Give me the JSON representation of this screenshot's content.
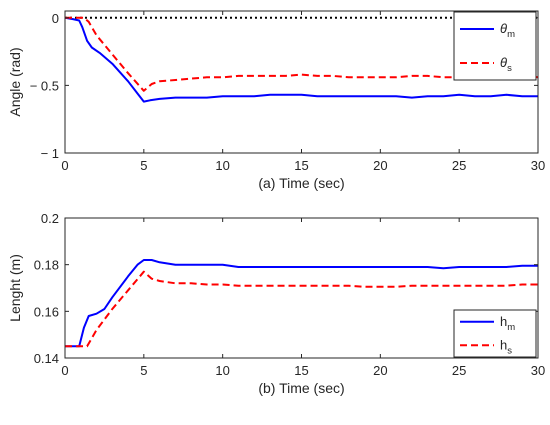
{
  "chart_data": [
    {
      "type": "line",
      "xlabel": "(a) Time (sec)",
      "ylabel": "Angle (rad)",
      "xlim": [
        0,
        30
      ],
      "ylim": [
        -1,
        0.05
      ],
      "xticks": [
        0,
        5,
        10,
        15,
        20,
        25,
        30
      ],
      "xtick_labels": [
        "0",
        "5",
        "10",
        "15",
        "20",
        "25",
        "30"
      ],
      "yticks": [
        0,
        -0.5,
        -1
      ],
      "ytick_labels": [
        "0",
        "− 0.5",
        "− 1"
      ],
      "reference_line": {
        "y": 0,
        "style": "dotted",
        "color": "#000000"
      },
      "grid": false,
      "legend_position": "top-right",
      "series": [
        {
          "name": "θ",
          "name_sub": "m",
          "color": "#0000ff",
          "style": "solid",
          "x": [
            0,
            0.5,
            0.9,
            1.1,
            1.4,
            1.7,
            2.2,
            3,
            4,
            4.6,
            5,
            5.4,
            6,
            7,
            8,
            9,
            10,
            11,
            12,
            13,
            14,
            15,
            16,
            17,
            18,
            19,
            20,
            21,
            22,
            23,
            24,
            25,
            26,
            27,
            28,
            29,
            30
          ],
          "y": [
            0,
            -0.01,
            -0.02,
            -0.07,
            -0.17,
            -0.22,
            -0.26,
            -0.34,
            -0.47,
            -0.56,
            -0.62,
            -0.61,
            -0.6,
            -0.59,
            -0.59,
            -0.59,
            -0.58,
            -0.58,
            -0.58,
            -0.57,
            -0.57,
            -0.57,
            -0.58,
            -0.58,
            -0.58,
            -0.58,
            -0.58,
            -0.58,
            -0.59,
            -0.58,
            -0.58,
            -0.57,
            -0.58,
            -0.58,
            -0.57,
            -0.58,
            -0.58
          ]
        },
        {
          "name": "θ",
          "name_sub": "s",
          "color": "#ff0000",
          "style": "dashed",
          "x": [
            0,
            1.2,
            1.5,
            2,
            3,
            4,
            5,
            5.5,
            6,
            7,
            8,
            9,
            10,
            11,
            12,
            13,
            14,
            15,
            16,
            17,
            18,
            19,
            20,
            21,
            22,
            23,
            24,
            25,
            26,
            27,
            28,
            29,
            30
          ],
          "y": [
            0,
            0,
            -0.03,
            -0.13,
            -0.27,
            -0.41,
            -0.54,
            -0.49,
            -0.47,
            -0.46,
            -0.45,
            -0.44,
            -0.44,
            -0.43,
            -0.43,
            -0.43,
            -0.43,
            -0.42,
            -0.43,
            -0.43,
            -0.44,
            -0.44,
            -0.44,
            -0.44,
            -0.43,
            -0.43,
            -0.44,
            -0.44,
            -0.43,
            -0.44,
            -0.44,
            -0.43,
            -0.44
          ]
        }
      ]
    },
    {
      "type": "line",
      "xlabel": "(b) Time (sec)",
      "ylabel": "Lenght (m)",
      "xlim": [
        0,
        30
      ],
      "ylim": [
        0.14,
        0.2
      ],
      "xticks": [
        0,
        5,
        10,
        15,
        20,
        25,
        30
      ],
      "xtick_labels": [
        "0",
        "5",
        "10",
        "15",
        "20",
        "25",
        "30"
      ],
      "yticks": [
        0.14,
        0.16,
        0.18,
        0.2
      ],
      "ytick_labels": [
        "0.14",
        "0.16",
        "0.18",
        "0.2"
      ],
      "grid": false,
      "legend_position": "bottom-right",
      "series": [
        {
          "name": "h",
          "name_sub": "m",
          "color": "#0000ff",
          "style": "solid",
          "x": [
            0,
            0.5,
            0.9,
            1.2,
            1.5,
            2,
            2.5,
            3,
            4,
            4.6,
            5,
            5.5,
            6,
            7,
            8,
            9,
            10,
            11,
            12,
            13,
            14,
            15,
            16,
            17,
            18,
            19,
            20,
            21,
            22,
            23,
            24,
            25,
            26,
            27,
            28,
            29,
            30
          ],
          "y": [
            0.145,
            0.145,
            0.145,
            0.153,
            0.158,
            0.159,
            0.161,
            0.166,
            0.175,
            0.18,
            0.182,
            0.182,
            0.181,
            0.18,
            0.18,
            0.18,
            0.18,
            0.179,
            0.179,
            0.179,
            0.179,
            0.179,
            0.179,
            0.179,
            0.179,
            0.179,
            0.179,
            0.179,
            0.179,
            0.179,
            0.1785,
            0.179,
            0.179,
            0.179,
            0.179,
            0.1795,
            0.1795
          ]
        },
        {
          "name": "h",
          "name_sub": "s",
          "color": "#ff0000",
          "style": "dashed",
          "x": [
            0,
            1,
            1.4,
            2,
            3,
            4,
            5,
            5.5,
            6,
            7,
            8,
            9,
            10,
            11,
            12,
            13,
            14,
            15,
            16,
            17,
            18,
            19,
            20,
            21,
            22,
            23,
            24,
            25,
            26,
            27,
            28,
            29,
            30
          ],
          "y": [
            0.145,
            0.145,
            0.145,
            0.152,
            0.161,
            0.169,
            0.177,
            0.174,
            0.173,
            0.172,
            0.172,
            0.1715,
            0.1715,
            0.171,
            0.171,
            0.171,
            0.171,
            0.171,
            0.171,
            0.171,
            0.171,
            0.1705,
            0.1705,
            0.1705,
            0.171,
            0.171,
            0.171,
            0.171,
            0.171,
            0.171,
            0.171,
            0.1715,
            0.1715
          ]
        }
      ]
    }
  ]
}
